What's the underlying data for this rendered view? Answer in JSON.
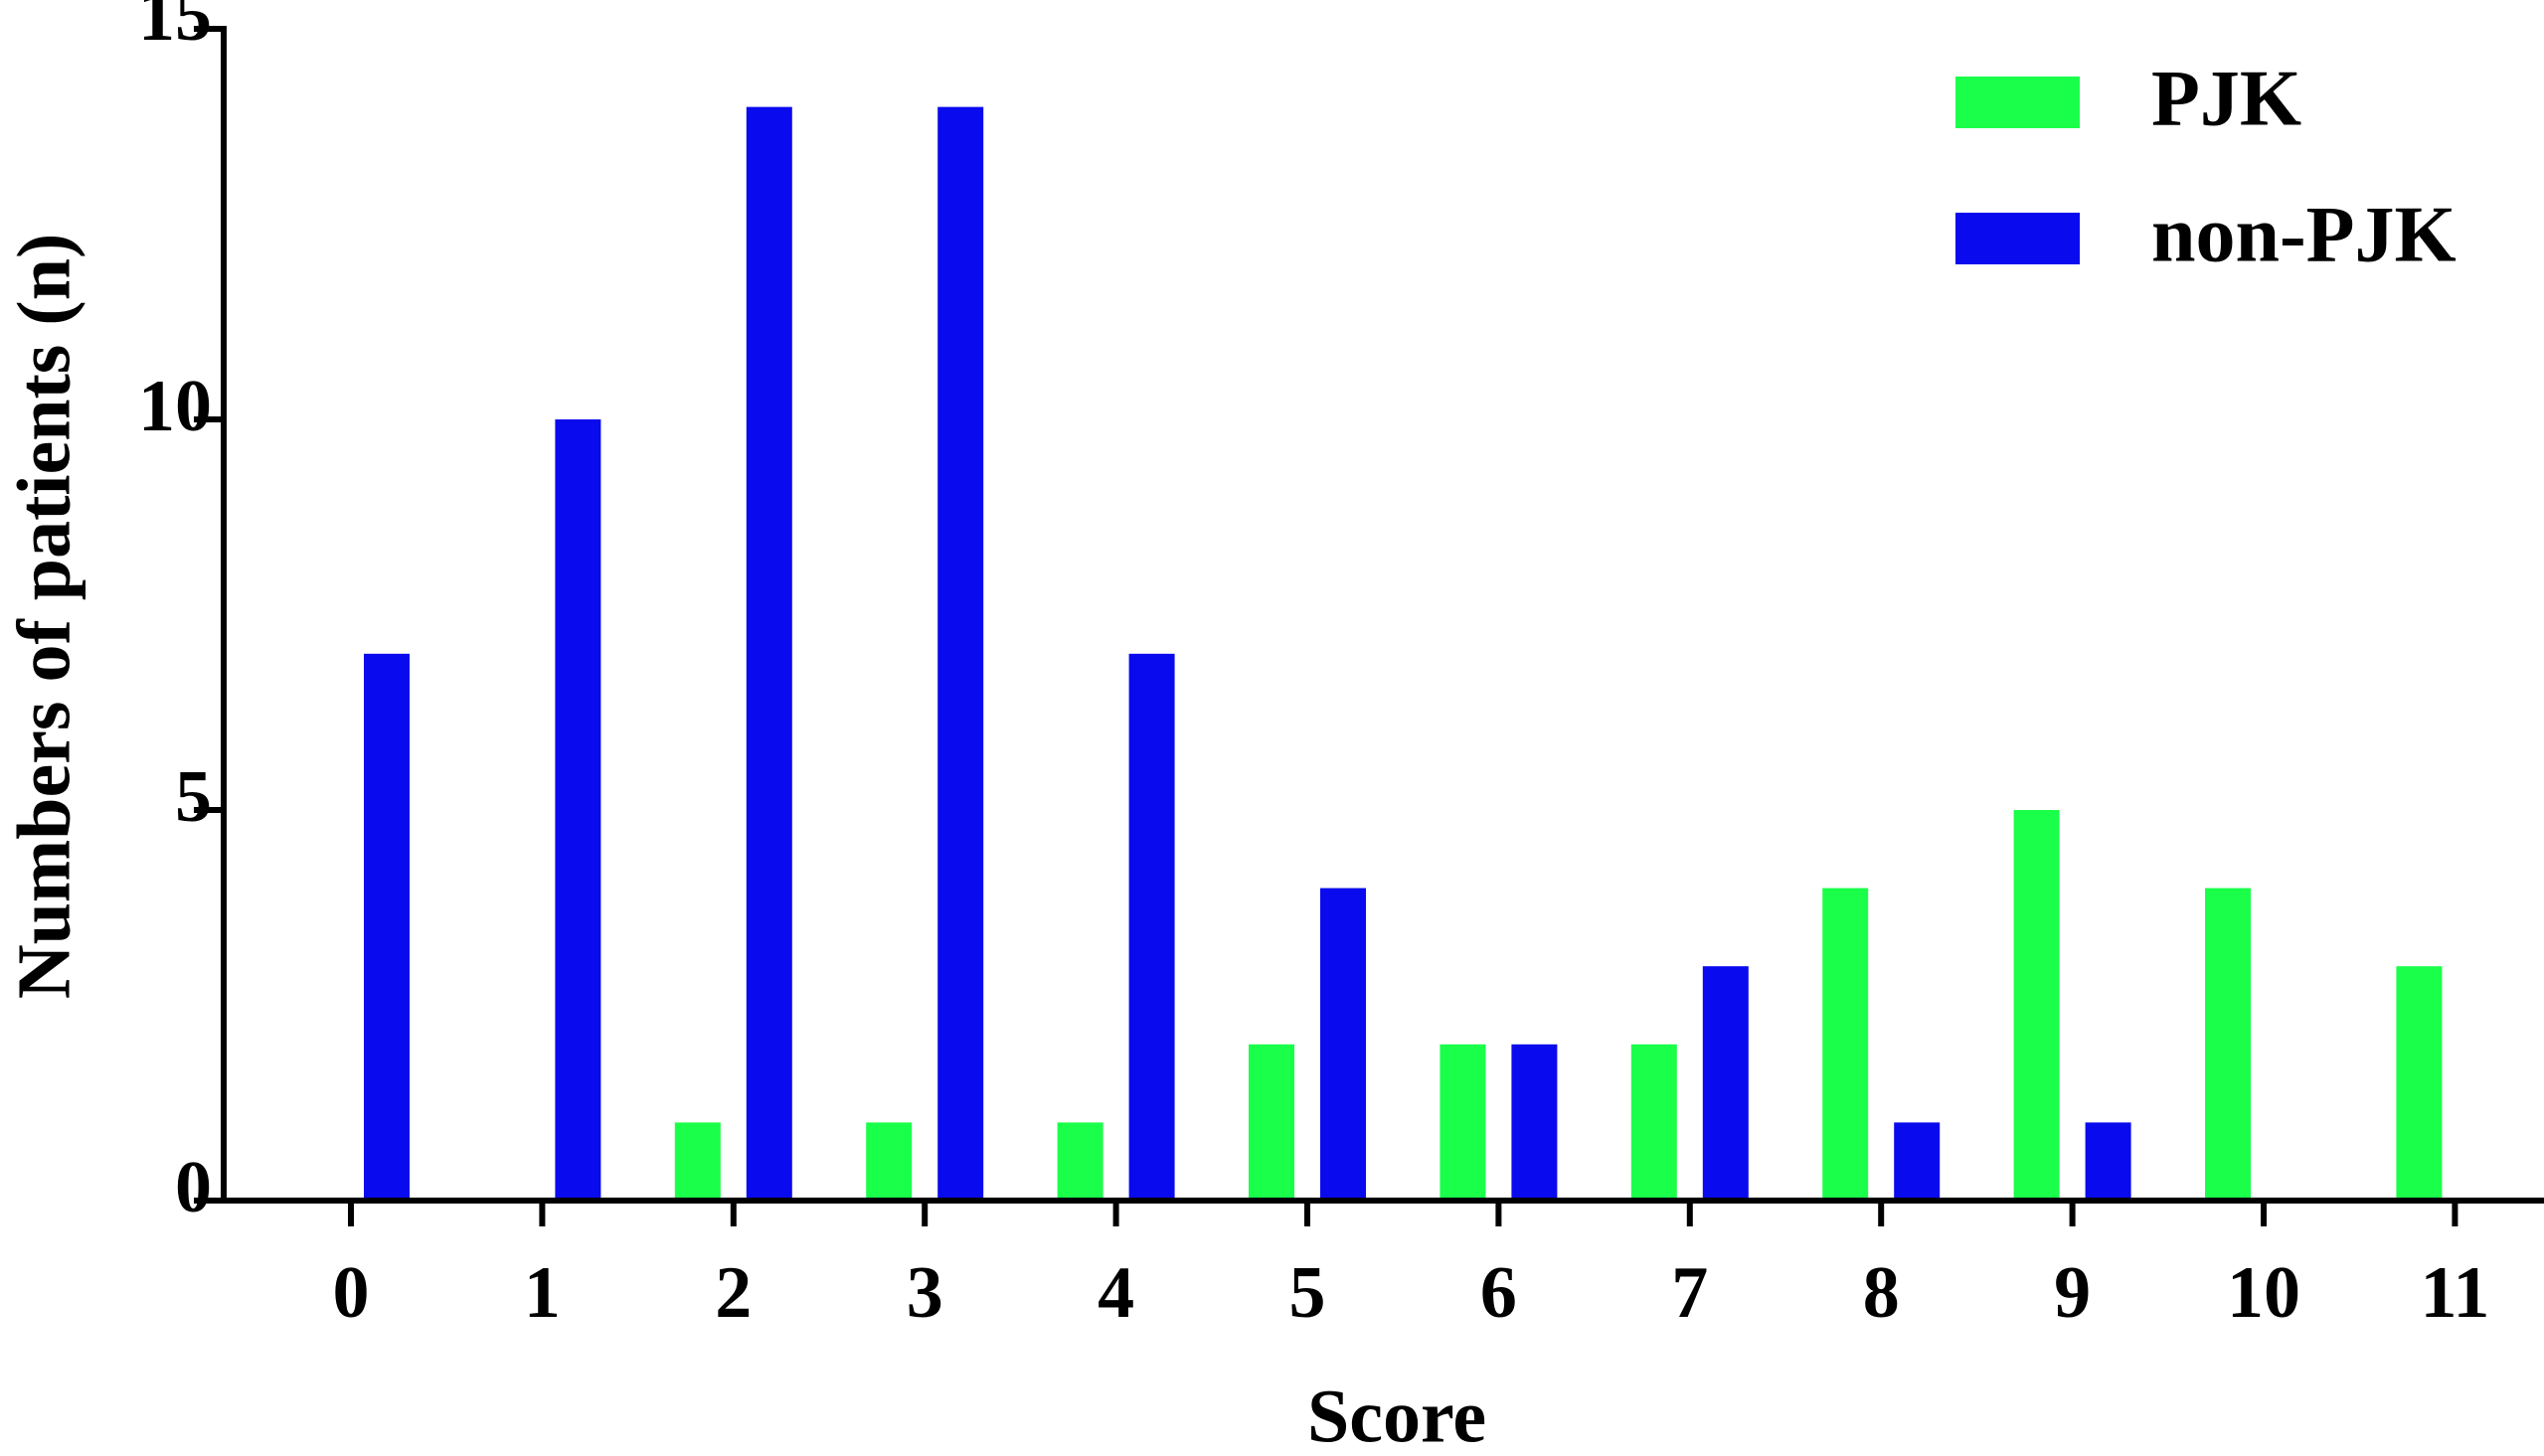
{
  "chart_data": {
    "type": "bar",
    "x_label": "Score",
    "y_label": "Numbers of patients (n)",
    "categories": [
      "0",
      "1",
      "2",
      "3",
      "4",
      "5",
      "6",
      "7",
      "8",
      "9",
      "10",
      "11"
    ],
    "series": [
      {
        "name": "PJK",
        "color": "#1aff4a",
        "values": [
          0,
          0,
          1,
          1,
          1,
          2,
          2,
          2,
          4,
          5,
          4,
          3
        ]
      },
      {
        "name": "non-PJK",
        "color": "#0a0aee",
        "values": [
          7,
          10,
          14,
          14,
          7,
          4,
          2,
          3,
          1,
          1,
          0,
          0
        ]
      }
    ],
    "ylim": [
      0,
      15
    ],
    "yticks": [
      0,
      5,
      10,
      15
    ],
    "grid": false,
    "legend": "upper right"
  }
}
